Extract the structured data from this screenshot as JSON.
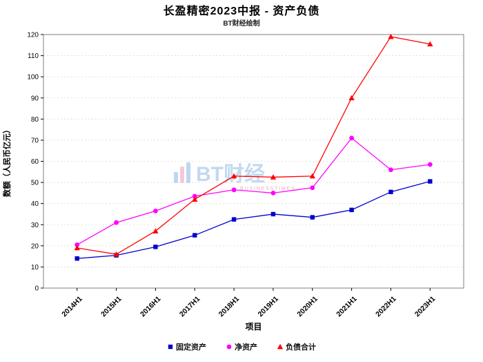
{
  "chart_data": {
    "type": "line",
    "title": "长盈精密2023中报 - 资产负债",
    "subtitle": "BT财经绘制",
    "xlabel": "项目",
    "ylabel": "数额（人民币亿元）",
    "categories": [
      "2014H1",
      "2015H1",
      "2016H1",
      "2017H1",
      "2018H1",
      "2019H1",
      "2020H1",
      "2021H1",
      "2022H1",
      "2023H1"
    ],
    "series": [
      {
        "name": "固定资产",
        "marker": "square",
        "color": "#0000CD",
        "values": [
          14,
          15.5,
          19.5,
          25,
          32.5,
          35,
          33.5,
          37,
          45.5,
          50.5
        ]
      },
      {
        "name": "净资产",
        "marker": "circle",
        "color": "#FF00FF",
        "values": [
          20.5,
          31,
          36.5,
          43.5,
          46.5,
          45,
          47.5,
          71,
          56,
          58.5
        ]
      },
      {
        "name": "负债合计",
        "marker": "triangle",
        "color": "#FF0000",
        "values": [
          19,
          16,
          27,
          42,
          53,
          52.5,
          53,
          90,
          119,
          115.5
        ]
      }
    ],
    "ylim": [
      0,
      120
    ],
    "ytick_step": 10,
    "grid": true,
    "legend_position": "bottom",
    "frame_color": "#7f7f7f",
    "grid_color": "#d9d9d9"
  },
  "watermark": {
    "logo": "bar-chart-logo",
    "text": "BT财经",
    "subtext": "BUSINESSTIMES",
    "blue": "#aecdf0",
    "pink": "#f0bcd4",
    "text_blue": "#b4d0ee",
    "sub_red": "#df9daa"
  }
}
